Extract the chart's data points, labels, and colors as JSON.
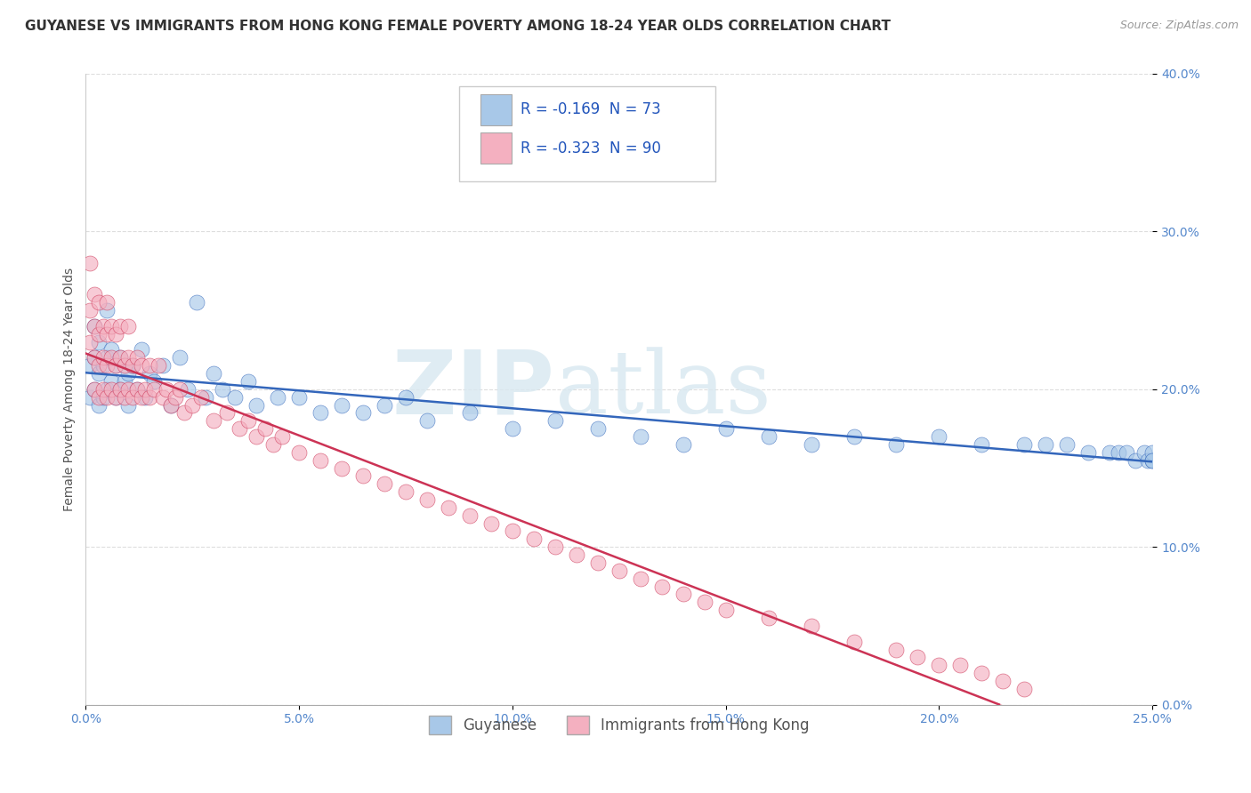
{
  "title": "GUYANESE VS IMMIGRANTS FROM HONG KONG FEMALE POVERTY AMONG 18-24 YEAR OLDS CORRELATION CHART",
  "source": "Source: ZipAtlas.com",
  "ylabel": "Female Poverty Among 18-24 Year Olds",
  "xlim": [
    0,
    0.25
  ],
  "ylim": [
    0,
    0.4
  ],
  "xticks": [
    0.0,
    0.05,
    0.1,
    0.15,
    0.2,
    0.25
  ],
  "xtick_labels": [
    "0.0%",
    "5.0%",
    "10.0%",
    "15.0%",
    "20.0%",
    "25.0%"
  ],
  "yticks": [
    0.0,
    0.1,
    0.2,
    0.3,
    0.4
  ],
  "ytick_labels": [
    "0.0%",
    "10.0%",
    "20.0%",
    "30.0%",
    "40.0%"
  ],
  "series": [
    {
      "name": "Guyanese",
      "R": -0.169,
      "N": 73,
      "color": "#a8c8e8",
      "line_color": "#3366bb",
      "line_style": "solid",
      "x": [
        0.001,
        0.001,
        0.002,
        0.002,
        0.002,
        0.003,
        0.003,
        0.003,
        0.004,
        0.004,
        0.005,
        0.005,
        0.005,
        0.006,
        0.006,
        0.007,
        0.007,
        0.008,
        0.008,
        0.009,
        0.01,
        0.01,
        0.011,
        0.012,
        0.013,
        0.014,
        0.015,
        0.016,
        0.018,
        0.02,
        0.022,
        0.024,
        0.026,
        0.028,
        0.03,
        0.032,
        0.035,
        0.038,
        0.04,
        0.045,
        0.05,
        0.055,
        0.06,
        0.065,
        0.07,
        0.075,
        0.08,
        0.09,
        0.1,
        0.11,
        0.12,
        0.13,
        0.14,
        0.15,
        0.16,
        0.17,
        0.18,
        0.19,
        0.2,
        0.21,
        0.22,
        0.225,
        0.23,
        0.235,
        0.24,
        0.242,
        0.244,
        0.246,
        0.248,
        0.249,
        0.25,
        0.25,
        0.25
      ],
      "y": [
        0.195,
        0.215,
        0.2,
        0.22,
        0.24,
        0.19,
        0.21,
        0.23,
        0.195,
        0.215,
        0.2,
        0.22,
        0.25,
        0.205,
        0.225,
        0.195,
        0.215,
        0.2,
        0.22,
        0.205,
        0.19,
        0.21,
        0.215,
        0.2,
        0.225,
        0.195,
        0.21,
        0.205,
        0.215,
        0.19,
        0.22,
        0.2,
        0.255,
        0.195,
        0.21,
        0.2,
        0.195,
        0.205,
        0.19,
        0.195,
        0.195,
        0.185,
        0.19,
        0.185,
        0.19,
        0.195,
        0.18,
        0.185,
        0.175,
        0.18,
        0.175,
        0.17,
        0.165,
        0.175,
        0.17,
        0.165,
        0.17,
        0.165,
        0.17,
        0.165,
        0.165,
        0.165,
        0.165,
        0.16,
        0.16,
        0.16,
        0.16,
        0.155,
        0.16,
        0.155,
        0.155,
        0.16,
        0.155
      ]
    },
    {
      "name": "Immigrants from Hong Kong",
      "R": -0.323,
      "N": 90,
      "color": "#f4b0c0",
      "line_color": "#cc3355",
      "line_style": "solid",
      "x": [
        0.001,
        0.001,
        0.001,
        0.002,
        0.002,
        0.002,
        0.002,
        0.003,
        0.003,
        0.003,
        0.003,
        0.004,
        0.004,
        0.004,
        0.005,
        0.005,
        0.005,
        0.005,
        0.006,
        0.006,
        0.006,
        0.007,
        0.007,
        0.007,
        0.008,
        0.008,
        0.008,
        0.009,
        0.009,
        0.01,
        0.01,
        0.01,
        0.011,
        0.011,
        0.012,
        0.012,
        0.013,
        0.013,
        0.014,
        0.015,
        0.015,
        0.016,
        0.017,
        0.018,
        0.019,
        0.02,
        0.021,
        0.022,
        0.023,
        0.025,
        0.027,
        0.03,
        0.033,
        0.036,
        0.038,
        0.04,
        0.042,
        0.044,
        0.046,
        0.05,
        0.055,
        0.06,
        0.065,
        0.07,
        0.075,
        0.08,
        0.085,
        0.09,
        0.095,
        0.1,
        0.105,
        0.11,
        0.115,
        0.12,
        0.125,
        0.13,
        0.135,
        0.14,
        0.145,
        0.15,
        0.16,
        0.17,
        0.18,
        0.19,
        0.195,
        0.2,
        0.205,
        0.21,
        0.215,
        0.22
      ],
      "y": [
        0.28,
        0.23,
        0.25,
        0.2,
        0.22,
        0.24,
        0.26,
        0.195,
        0.215,
        0.235,
        0.255,
        0.2,
        0.22,
        0.24,
        0.195,
        0.215,
        0.235,
        0.255,
        0.2,
        0.22,
        0.24,
        0.195,
        0.215,
        0.235,
        0.2,
        0.22,
        0.24,
        0.195,
        0.215,
        0.2,
        0.22,
        0.24,
        0.195,
        0.215,
        0.2,
        0.22,
        0.195,
        0.215,
        0.2,
        0.215,
        0.195,
        0.2,
        0.215,
        0.195,
        0.2,
        0.19,
        0.195,
        0.2,
        0.185,
        0.19,
        0.195,
        0.18,
        0.185,
        0.175,
        0.18,
        0.17,
        0.175,
        0.165,
        0.17,
        0.16,
        0.155,
        0.15,
        0.145,
        0.14,
        0.135,
        0.13,
        0.125,
        0.12,
        0.115,
        0.11,
        0.105,
        0.1,
        0.095,
        0.09,
        0.085,
        0.08,
        0.075,
        0.07,
        0.065,
        0.06,
        0.055,
        0.05,
        0.04,
        0.035,
        0.03,
        0.025,
        0.025,
        0.02,
        0.015,
        0.01
      ]
    }
  ],
  "watermark_zip": "ZIP",
  "watermark_atlas": "atlas",
  "background_color": "#ffffff",
  "grid_color": "#dddddd",
  "title_fontsize": 11,
  "axis_label_fontsize": 10,
  "tick_fontsize": 10,
  "legend_fontsize": 12
}
